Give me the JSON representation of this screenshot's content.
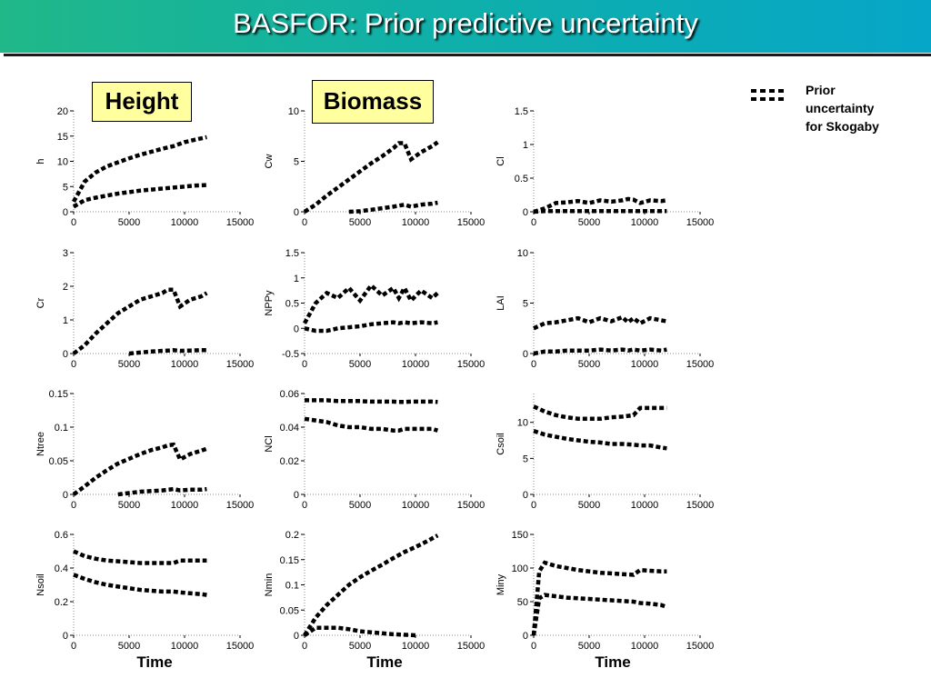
{
  "title": "BASFOR: Prior predictive uncertainty",
  "tags": {
    "height": "Height",
    "biomass": "Biomass"
  },
  "legend": {
    "line1": "Prior",
    "line2": "uncertainty",
    "line3": "for Skogaby"
  },
  "x_axis_title": "Time",
  "colors": {
    "header_start": "#20b889",
    "header_end": "#06a6c8",
    "tag_bg": "#ffffa0",
    "series": "#000000"
  },
  "chart_data": [
    {
      "type": "line",
      "ylabel": "h",
      "xlim": [
        0,
        15000
      ],
      "ylim": [
        0,
        20
      ],
      "xticks": [
        "0",
        "5000",
        "10000",
        "15000"
      ],
      "yticks": [
        "0",
        "5",
        "10",
        "15",
        "20"
      ],
      "x": [
        0,
        1000,
        2000,
        3000,
        4000,
        5000,
        6000,
        7000,
        8000,
        9000,
        10000,
        11000,
        12000
      ],
      "series": [
        {
          "values": [
            2,
            6,
            7.8,
            9,
            9.8,
            10.6,
            11.3,
            11.9,
            12.5,
            13,
            13.8,
            14.3,
            14.8
          ]
        },
        {
          "values": [
            1,
            2.3,
            2.8,
            3.2,
            3.6,
            3.9,
            4.2,
            4.4,
            4.6,
            4.8,
            5,
            5.2,
            5.3
          ]
        }
      ]
    },
    {
      "type": "line",
      "ylabel": "Cw",
      "xlim": [
        0,
        15000
      ],
      "ylim": [
        0,
        10
      ],
      "xticks": [
        "0",
        "5000",
        "10000",
        "15000"
      ],
      "yticks": [
        "0",
        "5",
        "10"
      ],
      "x": [
        0,
        1000,
        2000,
        3000,
        4000,
        5000,
        6000,
        7000,
        8000,
        8500,
        9000,
        9600,
        10500,
        11500,
        12000
      ],
      "series": [
        {
          "values": [
            0,
            0.7,
            1.6,
            2.4,
            3.2,
            4,
            4.8,
            5.5,
            6.3,
            6.8,
            6.8,
            5.2,
            5.9,
            6.5,
            6.9
          ]
        },
        {
          "values": [
            null,
            null,
            null,
            null,
            0,
            0.05,
            0.2,
            0.35,
            0.5,
            0.6,
            0.7,
            0.5,
            0.7,
            0.8,
            0.9
          ]
        }
      ]
    },
    {
      "type": "line",
      "ylabel": "Cl",
      "xlim": [
        0,
        15000
      ],
      "ylim": [
        0,
        1.5
      ],
      "xticks": [
        "0",
        "5000",
        "10000",
        "15000"
      ],
      "yticks": [
        "0",
        "0.5",
        "1",
        "1.5"
      ],
      "x": [
        0,
        1000,
        2000,
        3000,
        4000,
        5000,
        6000,
        7000,
        8000,
        8500,
        9000,
        9600,
        10500,
        11500,
        12000
      ],
      "series": [
        {
          "values": [
            0,
            0.05,
            0.13,
            0.14,
            0.16,
            0.13,
            0.17,
            0.15,
            0.17,
            0.19,
            0.18,
            0.13,
            0.17,
            0.16,
            0.17
          ]
        },
        {
          "values": [
            0,
            0.01,
            0.01,
            0.01,
            0.01,
            0.01,
            0.01,
            0.01,
            0.01,
            0.01,
            0.01,
            0.01,
            0.01,
            0.01,
            0.01
          ]
        }
      ]
    },
    {
      "type": "line",
      "ylabel": "Cr",
      "xlim": [
        0,
        15000
      ],
      "ylim": [
        0,
        3
      ],
      "xticks": [
        "0",
        "5000",
        "10000",
        "15000"
      ],
      "yticks": [
        "0",
        "1",
        "2",
        "3"
      ],
      "x": [
        0,
        1000,
        2000,
        3000,
        4000,
        5000,
        6000,
        7000,
        8000,
        8500,
        9000,
        9600,
        10500,
        11500,
        12000
      ],
      "series": [
        {
          "values": [
            0,
            0.25,
            0.6,
            0.9,
            1.2,
            1.4,
            1.6,
            1.7,
            1.8,
            1.9,
            1.9,
            1.4,
            1.6,
            1.7,
            1.8
          ]
        },
        {
          "values": [
            null,
            null,
            null,
            null,
            null,
            0,
            0.03,
            0.06,
            0.08,
            0.09,
            0.1,
            0.08,
            0.09,
            0.1,
            0.1
          ]
        }
      ]
    },
    {
      "type": "line",
      "ylabel": "NPPy",
      "xlim": [
        0,
        15000
      ],
      "ylim": [
        -0.5,
        1.5
      ],
      "xticks": [
        "0",
        "5000",
        "10000",
        "15000"
      ],
      "yticks": [
        "-0.5",
        "0",
        "0.5",
        "1",
        "1.5"
      ],
      "x": [
        0,
        1000,
        2000,
        3000,
        4000,
        5000,
        6000,
        7000,
        8000,
        8500,
        9000,
        9600,
        10500,
        11500,
        12000
      ],
      "series": [
        {
          "values": [
            0.1,
            0.5,
            0.7,
            0.6,
            0.8,
            0.55,
            0.85,
            0.65,
            0.8,
            0.6,
            0.8,
            0.55,
            0.75,
            0.6,
            0.7
          ]
        },
        {
          "values": [
            0,
            -0.05,
            -0.05,
            0,
            0.02,
            0.04,
            0.08,
            0.1,
            0.12,
            0.1,
            0.12,
            0.1,
            0.12,
            0.1,
            0.12
          ]
        }
      ]
    },
    {
      "type": "line",
      "ylabel": "LAI",
      "xlim": [
        0,
        15000
      ],
      "ylim": [
        0,
        10
      ],
      "xticks": [
        "0",
        "5000",
        "10000",
        "15000"
      ],
      "yticks": [
        "0",
        "5",
        "10"
      ],
      "x": [
        0,
        1000,
        2000,
        3000,
        4000,
        5000,
        6000,
        7000,
        8000,
        8500,
        9000,
        9600,
        10500,
        11500,
        12000
      ],
      "series": [
        {
          "values": [
            2.5,
            3,
            3.1,
            3.3,
            3.5,
            3.1,
            3.5,
            3.2,
            3.6,
            3.1,
            3.5,
            3,
            3.5,
            3.3,
            3.2
          ]
        },
        {
          "values": [
            0,
            0.2,
            0.2,
            0.3,
            0.3,
            0.3,
            0.4,
            0.3,
            0.4,
            0.3,
            0.4,
            0.3,
            0.4,
            0.3,
            0.4
          ]
        }
      ]
    },
    {
      "type": "line",
      "ylabel": "Ntree",
      "xlim": [
        0,
        15000
      ],
      "ylim": [
        0,
        0.15
      ],
      "xticks": [
        "0",
        "5000",
        "10000",
        "15000"
      ],
      "yticks": [
        "0",
        "0.05",
        "0.1",
        "0.15"
      ],
      "x": [
        0,
        1000,
        2000,
        3000,
        4000,
        5000,
        6000,
        7000,
        8000,
        8500,
        9000,
        9600,
        10500,
        11500,
        12000
      ],
      "series": [
        {
          "values": [
            0,
            0.012,
            0.025,
            0.036,
            0.046,
            0.053,
            0.06,
            0.066,
            0.07,
            0.073,
            0.074,
            0.052,
            0.06,
            0.065,
            0.068
          ]
        },
        {
          "values": [
            null,
            null,
            null,
            null,
            0,
            0.002,
            0.004,
            0.005,
            0.006,
            0.007,
            0.008,
            0.006,
            0.007,
            0.007,
            0.008
          ]
        }
      ]
    },
    {
      "type": "line",
      "ylabel": "NCl",
      "xlim": [
        0,
        15000
      ],
      "ylim": [
        0,
        0.06
      ],
      "xticks": [
        "0",
        "5000",
        "10000",
        "15000"
      ],
      "yticks": [
        "0",
        "0.02",
        "0.04",
        "0.06"
      ],
      "x": [
        0,
        1000,
        2000,
        3000,
        4000,
        5000,
        6000,
        7000,
        8000,
        8500,
        9000,
        9600,
        10500,
        11500,
        12000
      ],
      "series": [
        {
          "values": [
            0.056,
            0.056,
            0.056,
            0.0555,
            0.0555,
            0.0555,
            0.0552,
            0.0552,
            0.0552,
            0.055,
            0.055,
            0.0552,
            0.0552,
            0.0552,
            0.055
          ]
        },
        {
          "values": [
            0.045,
            0.044,
            0.043,
            0.041,
            0.04,
            0.04,
            0.039,
            0.039,
            0.038,
            0.038,
            0.039,
            0.039,
            0.039,
            0.039,
            0.038
          ]
        }
      ]
    },
    {
      "type": "line",
      "ylabel": "Csoil",
      "xlim": [
        0,
        15000
      ],
      "ylim": [
        0,
        14
      ],
      "xticks": [
        "0",
        "5000",
        "10000",
        "15000"
      ],
      "yticks": [
        "0",
        "5",
        "10"
      ],
      "x": [
        0,
        1000,
        2000,
        3000,
        4000,
        5000,
        6000,
        7000,
        8000,
        9000,
        9600,
        10500,
        11500,
        12000
      ],
      "series": [
        {
          "values": [
            12.2,
            11.5,
            11,
            10.7,
            10.5,
            10.5,
            10.5,
            10.7,
            10.8,
            11,
            12,
            12,
            12,
            12
          ]
        },
        {
          "values": [
            8.8,
            8.3,
            8,
            7.7,
            7.5,
            7.3,
            7.2,
            7,
            7,
            6.9,
            6.8,
            6.8,
            6.5,
            6.4
          ]
        }
      ]
    },
    {
      "type": "line",
      "ylabel": "Nsoil",
      "xlim": [
        0,
        15000
      ],
      "ylim": [
        0,
        0.6
      ],
      "xticks": [
        "0",
        "5000",
        "10000",
        "15000"
      ],
      "yticks": [
        "0",
        "0.2",
        "0.4",
        "0.6"
      ],
      "x": [
        0,
        1000,
        2000,
        3000,
        4000,
        5000,
        6000,
        7000,
        8000,
        9000,
        9600,
        10500,
        11500,
        12000
      ],
      "series": [
        {
          "values": [
            0.5,
            0.47,
            0.455,
            0.445,
            0.44,
            0.435,
            0.43,
            0.43,
            0.43,
            0.43,
            0.445,
            0.445,
            0.445,
            0.445
          ]
        },
        {
          "values": [
            0.36,
            0.335,
            0.315,
            0.3,
            0.29,
            0.28,
            0.27,
            0.265,
            0.26,
            0.26,
            0.255,
            0.25,
            0.245,
            0.24
          ]
        }
      ]
    },
    {
      "type": "line",
      "ylabel": "Nmin",
      "xlim": [
        0,
        15000
      ],
      "ylim": [
        0,
        0.2
      ],
      "xticks": [
        "0",
        "5000",
        "10000",
        "15000"
      ],
      "yticks": [
        "0",
        "0.05",
        "0.1",
        "0.15",
        "0.2"
      ],
      "x": [
        0,
        1000,
        2000,
        3000,
        4000,
        5000,
        6000,
        7000,
        8000,
        9000,
        10000,
        11000,
        12000
      ],
      "series": [
        {
          "values": [
            0,
            0.035,
            0.06,
            0.08,
            0.1,
            0.115,
            0.128,
            0.14,
            0.153,
            0.165,
            0.175,
            0.186,
            0.198
          ]
        },
        {
          "values": [
            0,
            0.015,
            0.015,
            0.015,
            0.012,
            0.008,
            0.006,
            0.004,
            0.002,
            0.001,
            0,
            null,
            null
          ]
        }
      ]
    },
    {
      "type": "line",
      "ylabel": "Miny",
      "xlim": [
        0,
        15000
      ],
      "ylim": [
        0,
        150
      ],
      "xticks": [
        "0",
        "5000",
        "10000",
        "15000"
      ],
      "yticks": [
        "0",
        "50",
        "100",
        "150"
      ],
      "x": [
        0,
        500,
        1000,
        2000,
        3000,
        4000,
        5000,
        6000,
        7000,
        8000,
        9000,
        9600,
        10500,
        11500,
        12000
      ],
      "series": [
        {
          "values": [
            0,
            95,
            108,
            103,
            100,
            97,
            95,
            93,
            92,
            91,
            90,
            97,
            96,
            95,
            95
          ]
        },
        {
          "values": [
            0,
            55,
            60,
            58,
            56,
            55,
            54,
            53,
            52,
            51,
            50,
            48,
            47,
            45,
            42
          ]
        }
      ]
    }
  ]
}
